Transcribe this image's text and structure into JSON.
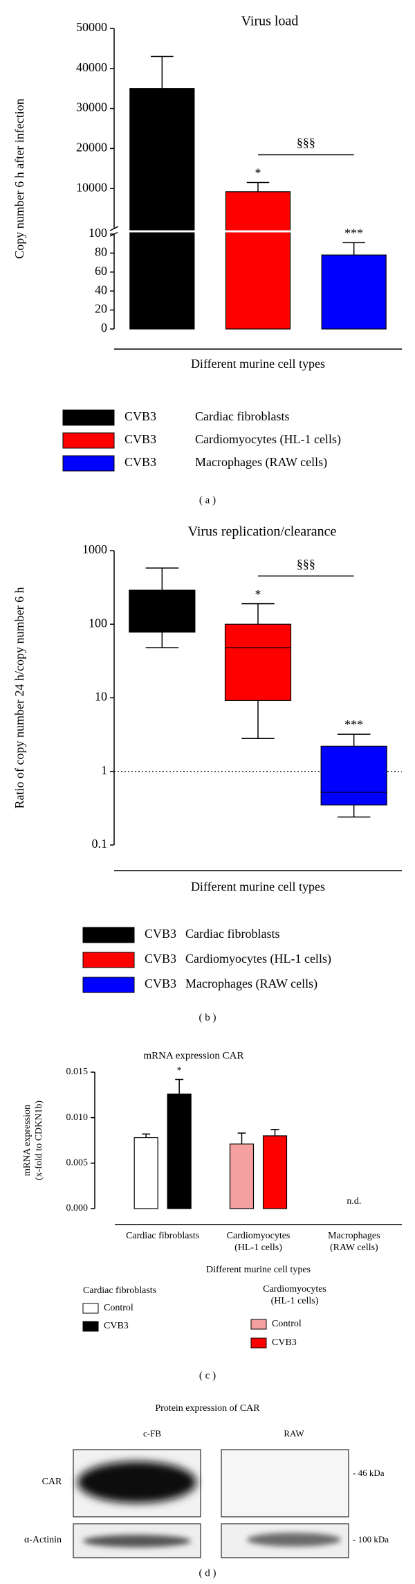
{
  "chart_data": [
    {
      "type": "bar",
      "panel": "( a )",
      "title": "Virus load",
      "ylabel": [
        "Copy number 6 h after infection"
      ],
      "xlabel": "Different murine cell types",
      "categories": [
        null,
        null,
        null
      ],
      "ylim": [
        0,
        50000
      ],
      "ysegments": [
        [
          0,
          100
        ],
        [
          0,
          50000
        ]
      ],
      "yticks": [
        0,
        20,
        40,
        60,
        80,
        100,
        10000,
        20000,
        30000,
        40000,
        50000
      ],
      "series": [
        {
          "name": "CVB3",
          "cell_type": "Cardiac fibroblasts",
          "color": "#000000",
          "values": [
            35000,
            null,
            null
          ],
          "errors": [
            8000,
            null,
            null
          ]
        },
        {
          "name": "CVB3",
          "cell_type": "Cardiomyocytes (HL-1 cells)",
          "color": "#ff0000",
          "values": [
            null,
            9200,
            null
          ],
          "errors": [
            null,
            2300,
            null
          ]
        },
        {
          "name": "CVB3",
          "cell_type": "Macrophages (RAW cells)",
          "color": "#0000ff",
          "values": [
            null,
            null,
            78
          ],
          "errors": [
            null,
            null,
            13
          ]
        }
      ],
      "annotations": [
        {
          "text": "*",
          "series": 1,
          "category": 1
        },
        {
          "text": "***",
          "series": 2,
          "category": 2
        }
      ],
      "comparison": {
        "text": "§§§",
        "between": [
          1,
          2
        ]
      }
    },
    {
      "type": "box",
      "panel": "( b )",
      "title": "Virus replication/clearance",
      "ylabel": [
        "Ratio of copy number 24 h/copy number 6 h"
      ],
      "xlabel": "Different murine cell types",
      "categories": [
        null,
        null,
        null
      ],
      "yscale": "log",
      "ylim": [
        0.1,
        1000
      ],
      "yticks": [
        0.1,
        1,
        10,
        100,
        1000
      ],
      "hline": 1,
      "series": [
        {
          "name": "CVB3",
          "cell_type": "Cardiac fibroblasts",
          "color": "#000000",
          "values": [
            {
              "min": 48,
              "q1": 78,
              "median": 150,
              "q3": 290,
              "max": 580
            },
            null,
            null
          ]
        },
        {
          "name": "CVB3",
          "cell_type": "Cardiomyocytes (HL-1 cells)",
          "color": "#ff0000",
          "values": [
            null,
            {
              "min": 2.8,
              "q1": 9.2,
              "median": 48,
              "q3": 100,
              "max": 190
            },
            null
          ]
        },
        {
          "name": "CVB3",
          "cell_type": "Macrophages (RAW cells)",
          "color": "#0000ff",
          "values": [
            null,
            null,
            {
              "min": 0.24,
              "q1": 0.35,
              "median": 0.52,
              "q3": 2.2,
              "max": 3.2
            }
          ]
        }
      ],
      "annotations": [
        {
          "text": "*",
          "series": 1,
          "category": 1
        },
        {
          "text": "***",
          "series": 2,
          "category": 2
        }
      ],
      "comparison": {
        "text": "§§§",
        "between": [
          1,
          2
        ]
      }
    },
    {
      "type": "bar",
      "panel": "( c )",
      "title": "mRNA expression CAR",
      "ylabel": [
        "mRNA expression",
        "(x-fold to CDKN1b)"
      ],
      "xlabel": "Different murine cell types",
      "categories": [
        [
          "Cardiac fibroblasts"
        ],
        [
          "Cardiomyocytes",
          "(HL-1 cells)"
        ],
        [
          "Macrophages",
          "(RAW cells)"
        ]
      ],
      "ylim": [
        0,
        0.015
      ],
      "yticks": [
        {
          "value": 0,
          "label": "0.000"
        },
        0.005,
        {
          "value": 0.01,
          "label": "0.010"
        },
        0.015
      ],
      "legend_groups": [
        {
          "title": [
            "Cardiac fibroblasts"
          ],
          "color": "#000000"
        },
        {
          "title": [
            "Cardiomyocytes",
            "(HL-1 cells)"
          ],
          "color": "#ff0000"
        }
      ],
      "series": [
        {
          "name": "Control",
          "group": 0,
          "color": "#ffffff",
          "values": [
            0.0078,
            null,
            null
          ],
          "errors": [
            0.0004,
            null,
            null
          ]
        },
        {
          "name": "CVB3",
          "group": 0,
          "color": "#000000",
          "values": [
            0.0126,
            null,
            null
          ],
          "errors": [
            0.0016,
            null,
            null
          ]
        },
        {
          "name": "Control",
          "group": 1,
          "color": "#f4a0a0",
          "values": [
            null,
            0.0071,
            null
          ],
          "errors": [
            null,
            0.0012,
            null
          ]
        },
        {
          "name": "CVB3",
          "group": 1,
          "color": "#ff0000",
          "values": [
            null,
            0.008,
            null
          ],
          "errors": [
            null,
            0.0007,
            null
          ]
        }
      ],
      "annotations": [
        {
          "text": "*",
          "series": 1,
          "category": 0
        },
        {
          "text": "n.d.",
          "category": 2
        }
      ]
    }
  ],
  "blot": {
    "panel": "( d )",
    "title": "Protein expression of CAR",
    "lanes": [
      "c-FB",
      "RAW"
    ],
    "rows": [
      "CAR",
      "α-Actinin"
    ],
    "markers": [
      "- 46 kDa",
      "- 100 kDa"
    ]
  }
}
